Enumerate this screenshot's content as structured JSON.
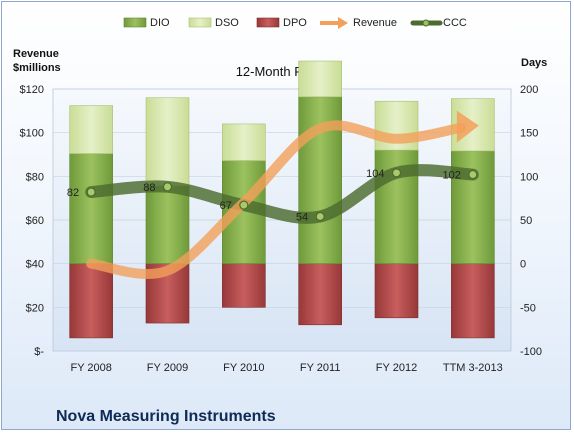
{
  "chart_data": {
    "type": "bar",
    "subtitle": "12-Month Periods",
    "company": "Nova Measuring Instruments",
    "left_axis_title_line1": "Revenue",
    "left_axis_title_line2": "$millions",
    "right_axis_title": "Days",
    "categories": [
      "FY 2008",
      "FY 2009",
      "FY 2010",
      "FY 2011",
      "FY 2012",
      "TTM 3-2013"
    ],
    "left_ticks": [
      "$120",
      "$100",
      "$80",
      "$60",
      "$40",
      "$20",
      "$-"
    ],
    "right_ticks": [
      "200",
      "150",
      "100",
      "50",
      "0",
      "-50",
      "-100"
    ],
    "left_ylim": [
      0,
      120
    ],
    "right_ylim": [
      -100,
      200
    ],
    "legend_position": "top",
    "legend": [
      "DIO",
      "DSO",
      "DPO",
      "Revenue",
      "CCC"
    ],
    "series": [
      {
        "name": "DIO",
        "values": [
          126,
          89,
          118,
          191,
          130,
          129
        ]
      },
      {
        "name": "DSO",
        "values": [
          55,
          101,
          42,
          41,
          56,
          60
        ]
      },
      {
        "name": "DPO",
        "values": [
          -85,
          -68,
          -50,
          -70,
          -62,
          -85
        ]
      },
      {
        "name": "Revenue",
        "values": [
          0,
          -8,
          70,
          155,
          143,
          158
        ]
      },
      {
        "name": "CCC",
        "values": [
          82,
          88,
          67,
          54,
          104,
          102
        ]
      }
    ],
    "ccc_labels": [
      "82",
      "88",
      "67",
      "54",
      "104",
      "102"
    ],
    "colors": {
      "DIO": "#8fb651",
      "DSO": "#d8e8b0",
      "DPO": "#b94a4a",
      "Revenue": "#f3a05a",
      "CCC": "#4c6b2e"
    }
  }
}
